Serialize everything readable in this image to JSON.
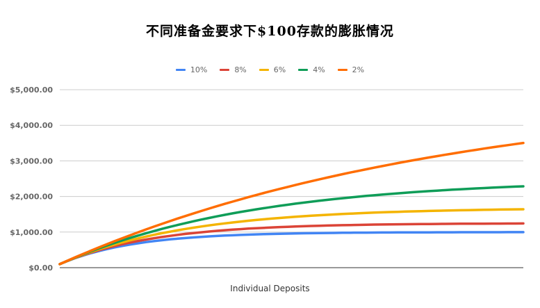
{
  "chart_data": {
    "type": "line",
    "title": "不同准备金要求下$100存款的膨胀情况",
    "xlabel": "Individual Deposits",
    "ylabel": "",
    "ylim": [
      0,
      5000
    ],
    "yticks": [
      "$0.00",
      "$1,000.00",
      "$2,000.00",
      "$3,000.00",
      "$4,000.00",
      "$5,000.00"
    ],
    "ytick_values": [
      0,
      1000,
      2000,
      3000,
      4000,
      5000
    ],
    "x": [
      1,
      2,
      3,
      4,
      5,
      6,
      7,
      8,
      9,
      10,
      11,
      12,
      13,
      14,
      15,
      16,
      17,
      18,
      19,
      20,
      21,
      22,
      23,
      24,
      25,
      26,
      27,
      28,
      29,
      30,
      31,
      32,
      33,
      34,
      35,
      36,
      37,
      38,
      39,
      40,
      41,
      42,
      43,
      44,
      45,
      46,
      47,
      48,
      49,
      50,
      51,
      52,
      53,
      54,
      55,
      56,
      57,
      58,
      59,
      60
    ],
    "grid": true,
    "legend_position": "top",
    "series": [
      {
        "name": "10%",
        "color": "#4285f4",
        "values": [
          100,
          190,
          271,
          344,
          410,
          469,
          522,
          570,
          613,
          651,
          686,
          718,
          746,
          771,
          794,
          815,
          833,
          850,
          865,
          878,
          891,
          902,
          911,
          920,
          928,
          935,
          942,
          948,
          953,
          958,
          962,
          966,
          969,
          972,
          975,
          977,
          980,
          982,
          984,
          985,
          987,
          988,
          989,
          990,
          991,
          992,
          993,
          993,
          994,
          995,
          995,
          996,
          996,
          996,
          997,
          997,
          997,
          998,
          998,
          998
        ]
      },
      {
        "name": "8%",
        "color": "#db4437",
        "values": [
          100,
          192,
          277,
          355,
          426,
          492,
          552,
          608,
          660,
          707,
          751,
          791,
          828,
          862,
          893,
          922,
          949,
          973,
          995,
          1016,
          1035,
          1052,
          1068,
          1083,
          1097,
          1109,
          1120,
          1131,
          1140,
          1149,
          1157,
          1165,
          1171,
          1178,
          1184,
          1189,
          1194,
          1198,
          1202,
          1206,
          1210,
          1213,
          1216,
          1219,
          1221,
          1223,
          1226,
          1227,
          1229,
          1231,
          1232,
          1234,
          1235,
          1236,
          1237,
          1238,
          1239,
          1240,
          1241,
          1242
        ]
      },
      {
        "name": "6%",
        "color": "#f4b400",
        "values": [
          100,
          194,
          282,
          365,
          443,
          517,
          586,
          651,
          712,
          770,
          824,
          875,
          923,
          968,
          1010,
          1050,
          1088,
          1123,
          1156,
          1188,
          1217,
          1244,
          1270,
          1295,
          1318,
          1339,
          1360,
          1379,
          1397,
          1414,
          1430,
          1445,
          1459,
          1472,
          1485,
          1497,
          1508,
          1518,
          1528,
          1537,
          1546,
          1554,
          1562,
          1569,
          1576,
          1582,
          1588,
          1594,
          1599,
          1604,
          1609,
          1614,
          1618,
          1622,
          1626,
          1629,
          1633,
          1636,
          1639,
          1641
        ]
      },
      {
        "name": "4%",
        "color": "#0f9d58",
        "values": [
          100,
          196,
          288,
          376,
          461,
          543,
          621,
          696,
          769,
          838,
          905,
          969,
          1030,
          1089,
          1146,
          1200,
          1252,
          1303,
          1351,
          1397,
          1441,
          1484,
          1525,
          1564,
          1602,
          1638,
          1672,
          1706,
          1738,
          1768,
          1798,
          1826,
          1853,
          1879,
          1904,
          1928,
          1951,
          1973,
          1994,
          2015,
          2034,
          2053,
          2071,
          2088,
          2105,
          2121,
          2136,
          2150,
          2164,
          2178,
          2191,
          2203,
          2215,
          2226,
          2237,
          2248,
          2258,
          2268,
          2277,
          2286
        ]
      },
      {
        "name": "2%",
        "color": "#ff6d01",
        "values": [
          100,
          198,
          294,
          388,
          480,
          571,
          659,
          746,
          831,
          914,
          996,
          1076,
          1154,
          1231,
          1306,
          1380,
          1452,
          1522,
          1592,
          1660,
          1726,
          1792,
          1855,
          1918,
          1980,
          2040,
          2099,
          2156,
          2213,
          2268,
          2323,
          2376,
          2428,
          2479,
          2529,
          2578,
          2626,
          2673,
          2719,
          2764,
          2809,
          2852,
          2895,
          2937,
          2978,
          3018,
          3057,
          3095,
          3133,
          3170,
          3206,
          3242,
          3277,
          3311,
          3345,
          3378,
          3410,
          3442,
          3472,
          3503
        ]
      }
    ]
  }
}
